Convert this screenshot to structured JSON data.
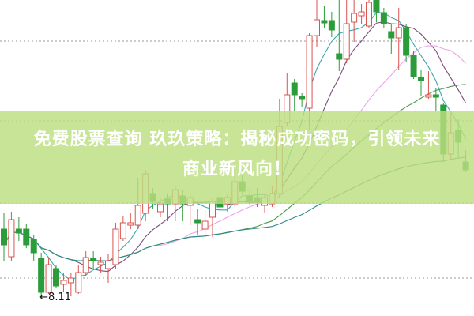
{
  "headline": {
    "line1": "免费股票查询 玖玖策略：揭秘成功密码，引领未来",
    "line2": "商业新风向！"
  },
  "colors": {
    "up": "#d9534f",
    "down": "#2a9d3a",
    "banner": "#bcde80",
    "ma": [
      "#3aa6b0",
      "#7a4a7a",
      "#e8a6e8",
      "#4d9a4d",
      "#2e8b8b"
    ]
  },
  "chart_data": {
    "type": "candlestick",
    "title": "",
    "xlabel": "",
    "ylabel": "",
    "ylim": [
      7.89,
      11.89
    ],
    "grid": "horizontal-dotted",
    "low_label": "8.11",
    "candles_ohlc": [
      [
        8.99,
        9.19,
        8.59,
        8.79
      ],
      [
        8.64,
        9.21,
        8.59,
        9.11
      ],
      [
        8.99,
        9.14,
        8.84,
        8.94
      ],
      [
        8.99,
        9.05,
        8.75,
        8.79
      ],
      [
        8.86,
        8.91,
        8.59,
        8.69
      ],
      [
        8.62,
        8.69,
        8.11,
        8.19
      ],
      [
        8.19,
        8.63,
        8.17,
        8.54
      ],
      [
        8.49,
        8.54,
        8.24,
        8.27
      ],
      [
        8.29,
        8.44,
        8.19,
        8.34
      ],
      [
        8.31,
        8.44,
        8.14,
        8.37
      ],
      [
        8.19,
        8.54,
        8.17,
        8.44
      ],
      [
        8.44,
        8.71,
        8.39,
        8.63
      ],
      [
        8.62,
        8.71,
        8.49,
        8.59
      ],
      [
        8.54,
        8.64,
        8.44,
        8.57
      ],
      [
        8.49,
        8.67,
        8.31,
        8.59
      ],
      [
        8.54,
        9.07,
        8.49,
        8.99
      ],
      [
        8.87,
        9.16,
        8.84,
        9.07
      ],
      [
        9.04,
        9.19,
        8.99,
        9.07
      ],
      [
        9.04,
        9.64,
        8.99,
        9.29
      ],
      [
        9.19,
        9.74,
        9.09,
        9.69
      ],
      [
        9.44,
        9.51,
        9.24,
        9.34
      ],
      [
        9.21,
        9.39,
        9.14,
        9.31
      ],
      [
        9.37,
        9.44,
        9.09,
        9.31
      ],
      [
        9.31,
        9.54,
        9.09,
        9.49
      ],
      [
        9.41,
        9.49,
        9.09,
        9.31
      ],
      [
        9.29,
        9.44,
        9.04,
        9.39
      ],
      [
        9.11,
        9.24,
        8.91,
        9.07
      ],
      [
        8.99,
        9.24,
        8.91,
        9.09
      ],
      [
        9.14,
        9.39,
        8.89,
        9.34
      ],
      [
        9.39,
        9.49,
        9.19,
        9.27
      ],
      [
        9.31,
        9.44,
        9.21,
        9.39
      ],
      [
        9.31,
        9.89,
        9.27,
        9.59
      ],
      [
        9.59,
        9.74,
        9.44,
        9.47
      ],
      [
        9.41,
        9.49,
        9.29,
        9.34
      ],
      [
        9.39,
        9.51,
        9.27,
        9.34
      ],
      [
        9.29,
        9.44,
        9.19,
        9.39
      ],
      [
        9.31,
        9.54,
        9.27,
        9.44
      ],
      [
        9.44,
        10.64,
        9.39,
        10.29
      ],
      [
        10.34,
        10.97,
        10.29,
        10.69
      ],
      [
        10.84,
        10.89,
        10.49,
        10.69
      ],
      [
        10.67,
        10.71,
        10.54,
        10.64
      ],
      [
        10.52,
        11.47,
        10.24,
        11.44
      ],
      [
        11.44,
        11.89,
        11.29,
        11.64
      ],
      [
        11.63,
        11.81,
        11.54,
        11.6
      ],
      [
        11.63,
        11.74,
        11.42,
        11.51
      ],
      [
        11.21,
        11.89,
        10.99,
        11.14
      ],
      [
        11.14,
        11.89,
        11.09,
        11.59
      ],
      [
        11.61,
        11.89,
        11.36,
        11.72
      ],
      [
        11.69,
        11.84,
        11.59,
        11.74
      ],
      [
        11.56,
        11.89,
        11.54,
        11.86
      ],
      [
        11.89,
        11.89,
        11.61,
        11.74
      ],
      [
        11.73,
        11.79,
        11.53,
        11.59
      ],
      [
        11.49,
        11.59,
        11.21,
        11.41
      ],
      [
        11.41,
        11.79,
        11.01,
        11.54
      ],
      [
        11.54,
        11.59,
        11.11,
        11.19
      ],
      [
        11.19,
        11.24,
        10.89,
        10.92
      ],
      [
        10.91,
        11.01,
        10.67,
        10.87
      ],
      [
        10.66,
        10.99,
        10.64,
        10.69
      ],
      [
        10.69,
        10.77,
        10.49,
        10.66
      ],
      [
        10.56,
        10.59,
        9.84,
        9.94
      ],
      [
        9.94,
        10.46,
        9.86,
        10.21
      ],
      [
        10.24,
        10.39,
        9.89,
        10.09
      ],
      [
        9.84,
        9.99,
        9.71,
        9.74
      ]
    ]
  }
}
